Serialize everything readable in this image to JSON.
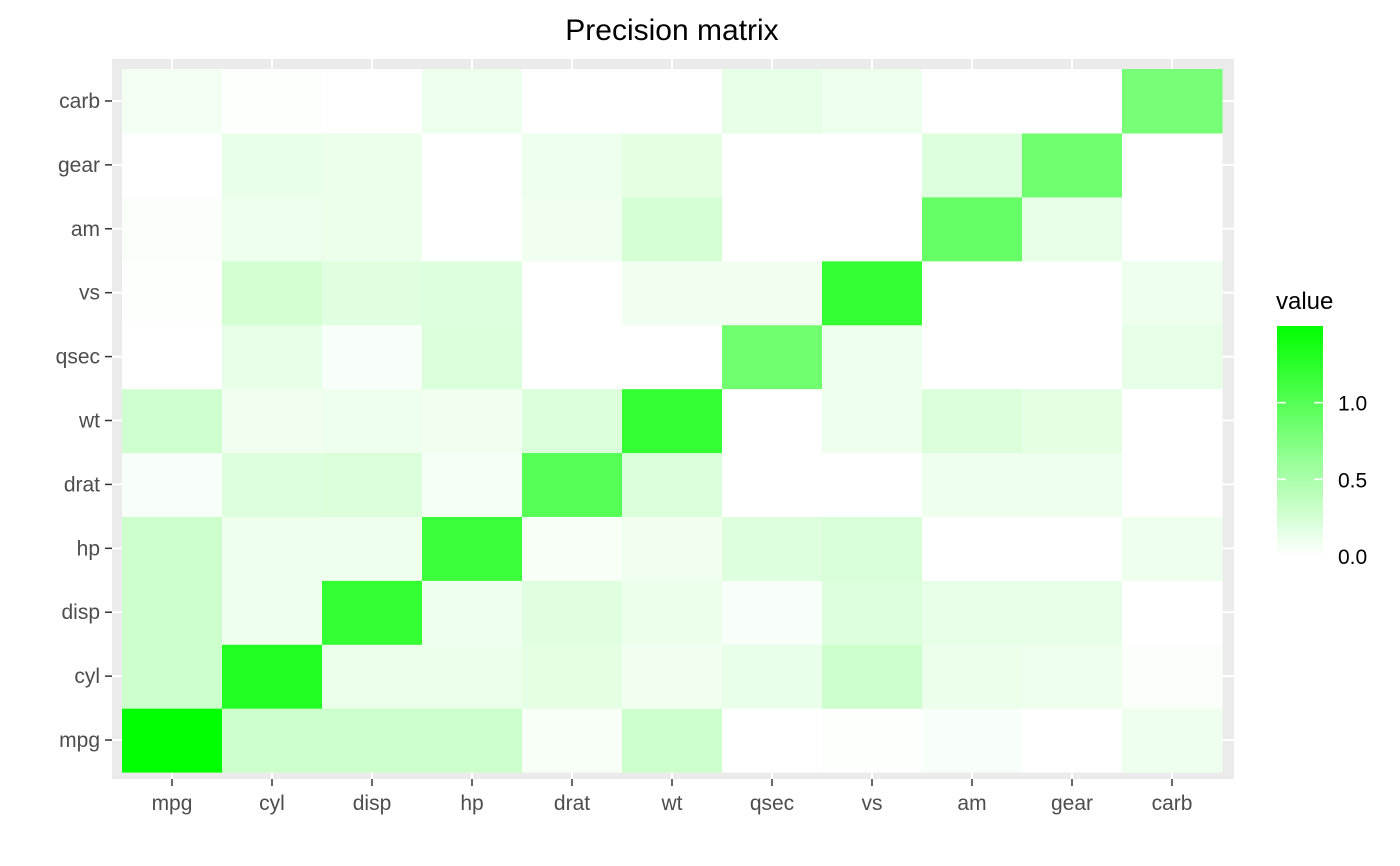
{
  "chart_data": {
    "type": "heatmap",
    "title": "Precision matrix",
    "xlabel": "",
    "ylabel": "",
    "x_categories": [
      "mpg",
      "cyl",
      "disp",
      "hp",
      "drat",
      "wt",
      "qsec",
      "vs",
      "am",
      "gear",
      "carb"
    ],
    "y_categories": [
      "mpg",
      "cyl",
      "disp",
      "hp",
      "drat",
      "wt",
      "qsec",
      "vs",
      "am",
      "gear",
      "carb"
    ],
    "values": [
      [
        1.5,
        0.3,
        0.3,
        0.3,
        0.05,
        0.3,
        0.0,
        0.02,
        0.04,
        0.0,
        0.1
      ],
      [
        0.3,
        1.3,
        0.12,
        0.12,
        0.16,
        0.08,
        0.13,
        0.3,
        0.12,
        0.1,
        0.03
      ],
      [
        0.3,
        0.1,
        1.2,
        0.1,
        0.18,
        0.12,
        0.04,
        0.2,
        0.15,
        0.14,
        0.0
      ],
      [
        0.3,
        0.1,
        0.1,
        1.15,
        0.05,
        0.08,
        0.2,
        0.23,
        0.0,
        0.0,
        0.1
      ],
      [
        0.04,
        0.2,
        0.22,
        0.06,
        1.0,
        0.22,
        0.0,
        0.0,
        0.1,
        0.1,
        0.0
      ],
      [
        0.28,
        0.08,
        0.1,
        0.09,
        0.22,
        1.2,
        0.0,
        0.1,
        0.22,
        0.16,
        0.0
      ],
      [
        0.0,
        0.15,
        0.04,
        0.22,
        0.0,
        0.0,
        0.85,
        0.1,
        0.0,
        0.0,
        0.15
      ],
      [
        0.02,
        0.26,
        0.18,
        0.2,
        0.0,
        0.08,
        0.08,
        1.2,
        0.0,
        0.0,
        0.1
      ],
      [
        0.03,
        0.1,
        0.12,
        0.0,
        0.08,
        0.25,
        0.0,
        0.0,
        0.9,
        0.15,
        0.0
      ],
      [
        0.0,
        0.13,
        0.12,
        0.0,
        0.1,
        0.16,
        0.0,
        0.0,
        0.2,
        0.85,
        0.0
      ],
      [
        0.07,
        0.02,
        0.0,
        0.1,
        0.0,
        0.0,
        0.15,
        0.1,
        0.0,
        0.0,
        0.8
      ]
    ],
    "color_range": [
      0,
      1.5
    ],
    "colors": {
      "low": "#ffffff",
      "high": "#00ff00",
      "panel_bg": "#ebebeb",
      "grid": "#ffffff",
      "tick_color": "#333333"
    },
    "legend": {
      "title": "value",
      "position": "right",
      "ticks": [
        "0.0",
        "0.5",
        "1.0"
      ],
      "tick_values": [
        0,
        0.5,
        1.0
      ]
    },
    "grid": true
  }
}
